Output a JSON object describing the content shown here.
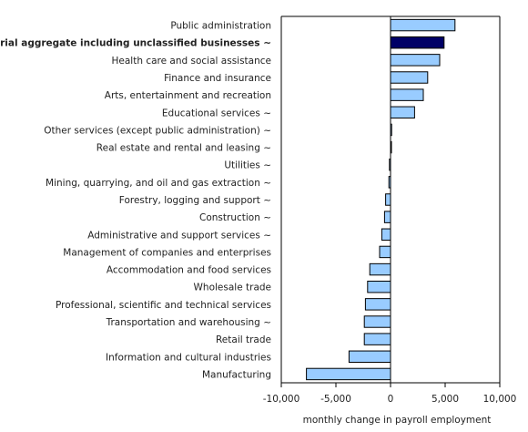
{
  "chart_data": {
    "type": "bar",
    "orientation": "horizontal",
    "xlabel": "monthly change in payroll employment",
    "xlim": [
      -10000,
      10000
    ],
    "xticks": [
      -10000,
      -5000,
      0,
      5000,
      10000
    ],
    "xtick_labels": [
      "-10,000",
      "-5,000",
      "0",
      "5,000",
      "10,000"
    ],
    "grid": false,
    "categories": [
      "Public administration",
      "Industrial aggregate including unclassified businesses ~",
      "Health care and social assistance",
      "Finance and insurance",
      "Arts, entertainment and recreation",
      "Educational services ~",
      "Other services (except public administration) ~",
      "Real estate and rental and leasing ~",
      "Utilities ~",
      "Mining, quarrying, and oil and gas extraction ~",
      "Forestry, logging and support ~",
      "Construction ~",
      "Administrative and support services ~",
      "Management of companies and enterprises",
      "Accommodation and food services",
      "Wholesale trade",
      "Professional, scientific and technical services",
      "Transportation and warehousing ~",
      "Retail trade",
      "Information and cultural industries",
      "Manufacturing"
    ],
    "values": [
      5900,
      4900,
      4500,
      3400,
      3000,
      2200,
      100,
      50,
      -100,
      -150,
      -450,
      -550,
      -800,
      -1000,
      -1900,
      -2100,
      -2300,
      -2400,
      -2400,
      -3800,
      -7700
    ],
    "highlight_index": 1,
    "colors": {
      "bar": "#99ccff",
      "highlight": "#000066",
      "stroke": "#000000"
    }
  }
}
